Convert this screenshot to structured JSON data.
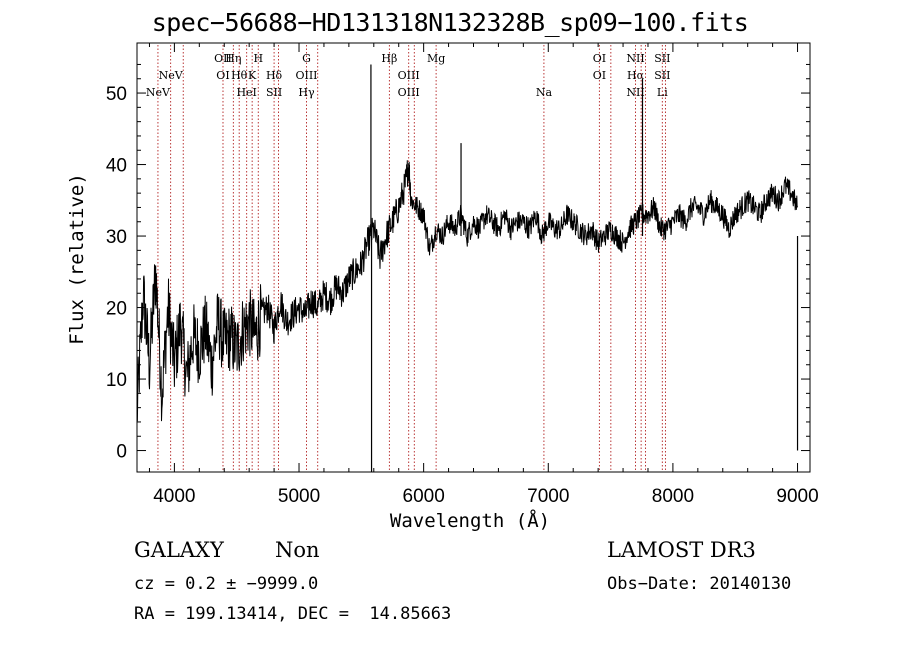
{
  "chart_data": {
    "type": "line",
    "title": "spec−56688−HD131318N132328B_sp09−100.fits",
    "xlabel": "Wavelength (Å)",
    "ylabel": "Flux (relative)",
    "xlim": [
      3700,
      9100
    ],
    "ylim": [
      -3,
      57
    ],
    "xticks": [
      4000,
      5000,
      6000,
      7000,
      8000,
      9000
    ],
    "yticks": [
      0,
      10,
      20,
      30,
      40,
      50
    ],
    "series": [
      {
        "name": "spectrum",
        "x": [
          3700,
          3750,
          3800,
          3850,
          3900,
          3950,
          4000,
          4050,
          4100,
          4150,
          4200,
          4250,
          4300,
          4350,
          4400,
          4450,
          4500,
          4550,
          4600,
          4650,
          4700,
          4750,
          4800,
          4850,
          4900,
          4950,
          5000,
          5050,
          5100,
          5150,
          5200,
          5250,
          5300,
          5350,
          5400,
          5450,
          5500,
          5550,
          5600,
          5650,
          5700,
          5750,
          5800,
          5850,
          5880,
          5900,
          5950,
          6000,
          6050,
          6100,
          6150,
          6200,
          6250,
          6300,
          6350,
          6400,
          6450,
          6500,
          6550,
          6600,
          6650,
          6700,
          6750,
          6800,
          6850,
          6900,
          6950,
          7000,
          7050,
          7100,
          7150,
          7200,
          7250,
          7300,
          7350,
          7400,
          7450,
          7500,
          7550,
          7600,
          7650,
          7700,
          7750,
          7800,
          7850,
          7900,
          7950,
          8000,
          8050,
          8100,
          8150,
          8200,
          8250,
          8300,
          8350,
          8400,
          8450,
          8500,
          8550,
          8600,
          8650,
          8700,
          8750,
          8800,
          8850,
          8900,
          8950,
          9000
        ],
        "y": [
          5,
          22,
          12,
          25,
          8,
          20,
          12,
          18,
          10,
          16,
          14,
          17,
          12,
          18,
          15,
          16,
          14,
          17,
          18,
          16,
          19,
          20,
          17,
          21,
          18,
          19,
          20,
          19,
          21,
          20,
          22,
          21,
          23,
          22,
          24,
          25,
          26,
          29,
          31,
          27,
          30,
          32,
          34,
          37,
          40,
          35,
          34,
          33,
          28,
          31,
          30,
          32,
          31,
          33,
          30,
          32,
          31,
          33,
          32,
          31,
          33,
          31,
          32,
          32,
          31,
          33,
          30,
          32,
          31,
          31,
          33,
          32,
          31,
          30,
          31,
          29,
          30,
          31,
          30,
          29,
          31,
          32,
          33,
          33,
          34,
          31,
          31,
          32,
          33,
          32,
          34,
          34,
          33,
          35,
          34,
          33,
          31,
          33,
          34,
          35,
          34,
          33,
          35,
          36,
          35,
          37,
          36,
          34
        ]
      }
    ],
    "spikes": [
      {
        "x": 5582,
        "y": -3
      },
      {
        "x": 5577,
        "y": 54
      },
      {
        "x": 6300,
        "y": 43
      },
      {
        "x": 7756,
        "y": 52
      },
      {
        "x": 9000,
        "y": 0
      }
    ],
    "line_markers": [
      {
        "x": 3868,
        "labels": [
          "NeV"
        ],
        "row": 3
      },
      {
        "x": 3970,
        "labels": [
          "NeV"
        ],
        "row": 2
      },
      {
        "x": 4071,
        "labels": [],
        "row": 0
      },
      {
        "x": 4390,
        "labels": [
          "OII",
          "OI"
        ],
        "row": 1
      },
      {
        "x": 4473,
        "labels": [
          "Hη"
        ],
        "row": 1
      },
      {
        "x": 4520,
        "labels": [
          "Hθ"
        ],
        "row": 2
      },
      {
        "x": 4580,
        "labels": [
          "HeI"
        ],
        "row": 3
      },
      {
        "x": 4624,
        "labels": [
          "K"
        ],
        "row": 2
      },
      {
        "x": 4673,
        "labels": [
          "H"
        ],
        "row": 1
      },
      {
        "x": 4800,
        "labels": [
          "Hδ",
          "SII"
        ],
        "row": 2
      },
      {
        "x": 4835,
        "labels": [],
        "row": 0
      },
      {
        "x": 5060,
        "labels": [
          "G",
          "OIII",
          "Hγ"
        ],
        "row": 1
      },
      {
        "x": 5150,
        "labels": [],
        "row": 0
      },
      {
        "x": 5725,
        "labels": [
          "Hβ"
        ],
        "row": 1
      },
      {
        "x": 5880,
        "labels": [
          "OIII",
          "OIII"
        ],
        "row": 2
      },
      {
        "x": 5925,
        "labels": [],
        "row": 0
      },
      {
        "x": 6100,
        "labels": [
          "Mg"
        ],
        "row": 1
      },
      {
        "x": 6965,
        "labels": [
          "Na"
        ],
        "row": 3
      },
      {
        "x": 7410,
        "labels": [
          "OI",
          "OI"
        ],
        "row": 1
      },
      {
        "x": 7502,
        "labels": [],
        "row": 0
      },
      {
        "x": 7700,
        "labels": [
          "NII",
          "Hα",
          "NII"
        ],
        "row": 1
      },
      {
        "x": 7745,
        "labels": [],
        "row": 0
      },
      {
        "x": 7780,
        "labels": [],
        "row": 0
      },
      {
        "x": 7915,
        "labels": [
          "SII",
          "SII",
          "Li"
        ],
        "row": 1
      },
      {
        "x": 7940,
        "labels": [],
        "row": 0
      }
    ]
  },
  "info": {
    "object_class": "GALAXY",
    "subclass": "Non",
    "cz": "cz = 0.2 ± −9999.0",
    "radec": "RA = 199.13414, DEC =  14.85663",
    "survey": "LAMOST DR3",
    "obs_date": "Obs−Date: 20140130"
  }
}
